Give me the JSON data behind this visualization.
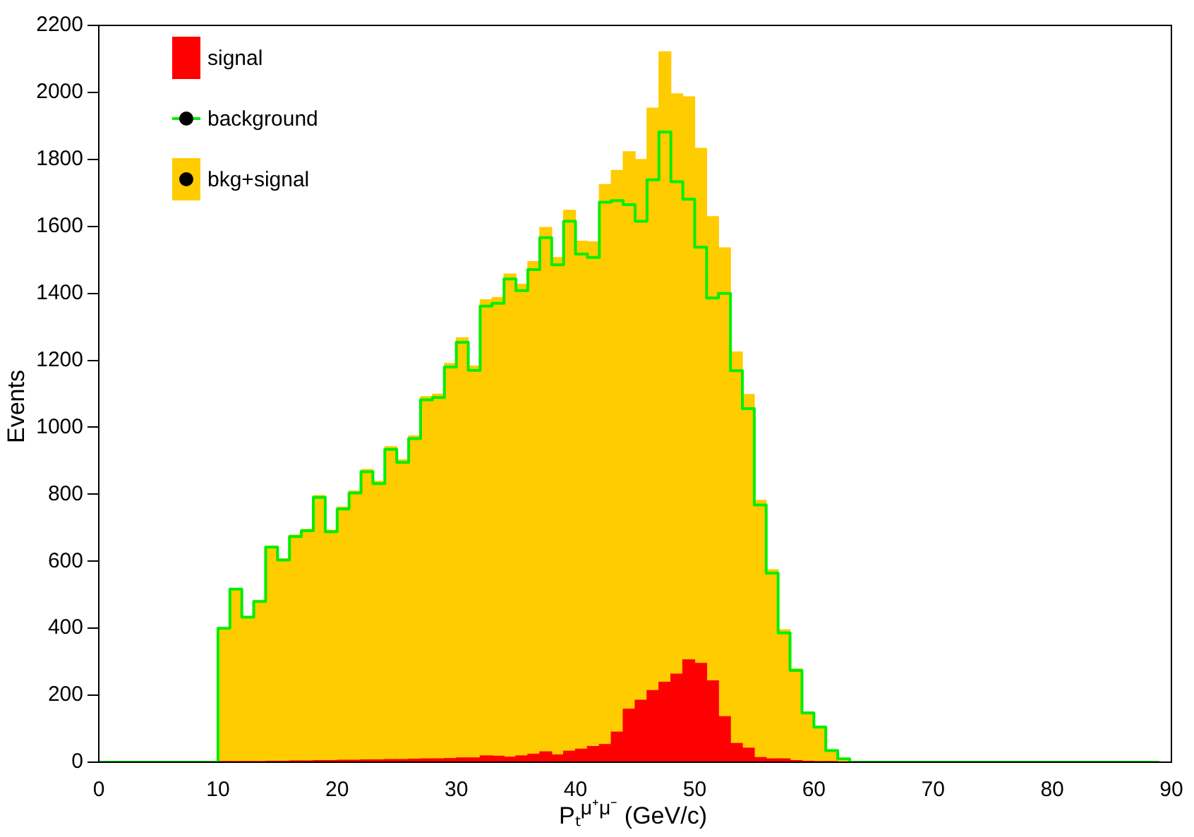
{
  "chart_data": {
    "type": "histogram",
    "xlabel": "Pₜ$^{μ⁺μ⁻}$ (GeV/c)",
    "ylabel": "Events",
    "bins": [
      0,
      1,
      2,
      3,
      4,
      5,
      6,
      7,
      8,
      9,
      10,
      11,
      12,
      13,
      14,
      15,
      16,
      17,
      18,
      19,
      20,
      21,
      22,
      23,
      24,
      25,
      26,
      27,
      28,
      29,
      30,
      31,
      32,
      33,
      34,
      35,
      36,
      37,
      38,
      39,
      40,
      41,
      42,
      43,
      44,
      45,
      46,
      47,
      48,
      49,
      50,
      51,
      52,
      53,
      54,
      55,
      56,
      57,
      58,
      59,
      60,
      61,
      62,
      63,
      64,
      65,
      66,
      67,
      68,
      69,
      70,
      71,
      72,
      73,
      74,
      75,
      76,
      77,
      78,
      79,
      80,
      81,
      82,
      83,
      84,
      85,
      86,
      87,
      88,
      89,
      90
    ],
    "series": [
      {
        "name": "signal",
        "type": "histogram",
        "color": "#ff0000",
        "values": [
          0,
          0,
          0,
          0,
          0,
          0,
          0,
          0,
          0,
          0,
          1,
          2,
          2,
          2,
          3,
          3,
          4,
          4,
          5,
          5,
          6,
          6,
          7,
          7,
          8,
          8,
          9,
          10,
          10,
          11,
          13,
          13,
          19,
          18,
          15,
          19,
          24,
          31,
          22,
          33,
          39,
          47,
          53,
          90,
          158,
          185,
          214,
          239,
          263,
          306,
          295,
          243,
          136,
          56,
          42,
          14,
          10,
          10,
          5,
          3,
          2,
          1,
          0,
          0,
          0,
          0,
          0,
          0,
          0,
          0,
          0,
          0,
          0,
          0,
          0,
          0,
          0,
          0,
          0,
          0,
          0,
          0,
          0,
          0,
          0,
          0,
          0,
          0,
          0,
          0
        ]
      },
      {
        "name": "background",
        "type": "step",
        "color": "#00ee00",
        "x": [
          0,
          1,
          2,
          3,
          4,
          5,
          6,
          7,
          8,
          9,
          10,
          11,
          12,
          13,
          14,
          15,
          16,
          17,
          18,
          19,
          20,
          21,
          22,
          23,
          24,
          25,
          26,
          27,
          28,
          29,
          30,
          31,
          32,
          33,
          34,
          35,
          36,
          37,
          38,
          39,
          40,
          41,
          42,
          43,
          44,
          45,
          46,
          47,
          48,
          49,
          50,
          51,
          52,
          53,
          54,
          55,
          56,
          57,
          58,
          59,
          60,
          61,
          62,
          63,
          64,
          65,
          66,
          67,
          68,
          69,
          70,
          71,
          72,
          73,
          74,
          75,
          76,
          77,
          78,
          79,
          80,
          81,
          82,
          83,
          84,
          85,
          86,
          87,
          88,
          89
        ],
        "values": [
          0,
          0,
          0,
          0,
          0,
          0,
          0,
          0,
          0,
          0,
          400,
          517,
          433,
          480,
          642,
          604,
          674,
          691,
          791,
          688,
          756,
          804,
          867,
          832,
          934,
          895,
          966,
          1082,
          1089,
          1180,
          1254,
          1170,
          1362,
          1370,
          1443,
          1408,
          1471,
          1566,
          1485,
          1615,
          1517,
          1507,
          1672,
          1677,
          1665,
          1615,
          1739,
          1882,
          1733,
          1681,
          1538,
          1386,
          1400,
          1169,
          1056,
          768,
          565,
          386,
          274,
          147,
          105,
          35,
          10,
          0,
          0,
          0,
          0,
          0,
          0,
          0,
          0,
          0,
          0,
          0,
          0,
          0,
          0,
          0,
          0,
          0,
          0,
          0,
          0,
          0,
          0,
          0,
          0,
          0,
          0,
          0
        ]
      },
      {
        "name": "bkg+signal",
        "type": "histogram",
        "color": "#ffcc00",
        "values": [
          0,
          0,
          0,
          0,
          0,
          0,
          0,
          0,
          0,
          0,
          401,
          519,
          435,
          482,
          645,
          607,
          678,
          695,
          796,
          693,
          762,
          810,
          874,
          839,
          942,
          903,
          975,
          1092,
          1099,
          1191,
          1267,
          1183,
          1381,
          1388,
          1458,
          1427,
          1495,
          1597,
          1507,
          1648,
          1556,
          1554,
          1725,
          1767,
          1823,
          1800,
          1953,
          2121,
          1996,
          1987,
          1833,
          1629,
          1536,
          1225,
          1098,
          782,
          575,
          396,
          279,
          150,
          107,
          36,
          10,
          0,
          0,
          0,
          0,
          0,
          0,
          0,
          0,
          0,
          0,
          0,
          0,
          0,
          0,
          0,
          0,
          0,
          0,
          0,
          0,
          0,
          0,
          0,
          0,
          0,
          0,
          0
        ]
      }
    ],
    "xlim": [
      0,
      90
    ],
    "xticks": [
      0,
      10,
      20,
      30,
      40,
      50,
      60,
      70,
      80,
      90
    ],
    "ylim": [
      0,
      2200
    ],
    "yticks": [
      0,
      200,
      400,
      600,
      800,
      1000,
      1200,
      1400,
      1600,
      1800,
      2000,
      2200
    ],
    "grid": false,
    "legend": "top left"
  }
}
